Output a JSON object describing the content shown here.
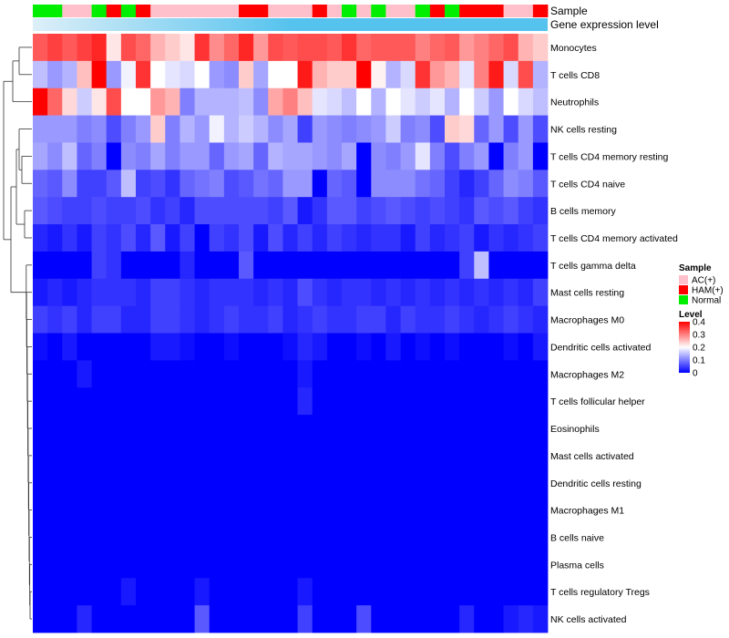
{
  "chart_data": {
    "type": "heatmap",
    "annotation_rows": [
      "Sample",
      "Gene expression level"
    ],
    "sample_groups": [
      "Normal",
      "Normal",
      "AC(+)",
      "AC(+)",
      "Normal",
      "HAM(+)",
      "Normal",
      "HAM(+)",
      "AC(+)",
      "AC(+)",
      "AC(+)",
      "AC(+)",
      "AC(+)",
      "AC(+)",
      "HAM(+)",
      "HAM(+)",
      "AC(+)",
      "AC(+)",
      "AC(+)",
      "HAM(+)",
      "AC(+)",
      "Normal",
      "AC(+)",
      "Normal",
      "AC(+)",
      "AC(+)",
      "Normal",
      "HAM(+)",
      "Normal",
      "HAM(+)",
      "HAM(+)",
      "HAM(+)",
      "AC(+)",
      "AC(+)",
      "HAM(+)"
    ],
    "rows": [
      "Monocytes",
      "T cells CD8",
      "Neutrophils",
      "NK cells resting",
      "T cells CD4 memory resting",
      "T cells CD4 naive",
      "B cells memory",
      "T cells CD4 memory activated",
      "T cells gamma delta",
      "Mast cells resting",
      "Macrophages M0",
      "Dendritic cells activated",
      "Macrophages M2",
      "T cells follicular helper",
      "Eosinophils",
      "Mast cells activated",
      "Dendritic cells resting",
      "Macrophages M1",
      "B cells naive",
      "Plasma cells",
      "T cells regulatory  Tregs",
      "NK cells activated"
    ],
    "values": [
      [
        0.33,
        0.35,
        0.33,
        0.35,
        0.37,
        0.22,
        0.34,
        0.32,
        0.26,
        0.24,
        0.22,
        0.36,
        0.29,
        0.32,
        0.37,
        0.28,
        0.34,
        0.33,
        0.34,
        0.34,
        0.33,
        0.36,
        0.32,
        0.33,
        0.33,
        0.33,
        0.3,
        0.32,
        0.33,
        0.28,
        0.3,
        0.32,
        0.34,
        0.26,
        0.24
      ],
      [
        0.15,
        0.12,
        0.14,
        0.25,
        0.4,
        0.12,
        0.19,
        0.36,
        0.2,
        0.18,
        0.17,
        0.2,
        0.12,
        0.11,
        0.24,
        0.13,
        0.2,
        0.2,
        0.38,
        0.26,
        0.24,
        0.24,
        0.4,
        0.21,
        0.14,
        0.17,
        0.36,
        0.28,
        0.26,
        0.18,
        0.3,
        0.38,
        0.17,
        0.34,
        0.14
      ],
      [
        0.4,
        0.32,
        0.23,
        0.16,
        0.22,
        0.34,
        0.2,
        0.2,
        0.28,
        0.26,
        0.1,
        0.14,
        0.14,
        0.14,
        0.15,
        0.11,
        0.27,
        0.3,
        0.25,
        0.18,
        0.17,
        0.15,
        0.2,
        0.14,
        0.2,
        0.18,
        0.16,
        0.18,
        0.14,
        0.2,
        0.16,
        0.12,
        0.2,
        0.17,
        0.15
      ],
      [
        0.12,
        0.12,
        0.12,
        0.1,
        0.11,
        0.06,
        0.1,
        0.12,
        0.24,
        0.1,
        0.14,
        0.12,
        0.19,
        0.14,
        0.16,
        0.14,
        0.11,
        0.13,
        0.05,
        0.12,
        0.11,
        0.1,
        0.11,
        0.12,
        0.16,
        0.1,
        0.11,
        0.06,
        0.24,
        0.23,
        0.08,
        0.12,
        0.06,
        0.12,
        0.06
      ],
      [
        0.13,
        0.11,
        0.15,
        0.08,
        0.1,
        0.0,
        0.11,
        0.1,
        0.13,
        0.1,
        0.12,
        0.12,
        0.08,
        0.12,
        0.13,
        0.08,
        0.14,
        0.13,
        0.13,
        0.12,
        0.11,
        0.13,
        0.0,
        0.11,
        0.1,
        0.12,
        0.18,
        0.1,
        0.06,
        0.1,
        0.12,
        0.0,
        0.1,
        0.12,
        0.0
      ],
      [
        0.08,
        0.07,
        0.11,
        0.05,
        0.05,
        0.07,
        0.15,
        0.05,
        0.06,
        0.04,
        0.08,
        0.09,
        0.1,
        0.06,
        0.07,
        0.09,
        0.08,
        0.12,
        0.12,
        0.0,
        0.08,
        0.07,
        0.0,
        0.11,
        0.11,
        0.11,
        0.09,
        0.08,
        0.05,
        0.03,
        0.05,
        0.08,
        0.11,
        0.1,
        0.07
      ],
      [
        0.07,
        0.06,
        0.05,
        0.05,
        0.06,
        0.05,
        0.05,
        0.06,
        0.04,
        0.05,
        0.03,
        0.06,
        0.06,
        0.06,
        0.06,
        0.06,
        0.05,
        0.07,
        0.02,
        0.04,
        0.07,
        0.07,
        0.05,
        0.06,
        0.07,
        0.06,
        0.05,
        0.06,
        0.05,
        0.04,
        0.07,
        0.06,
        0.07,
        0.05,
        0.04
      ],
      [
        0.03,
        0.02,
        0.04,
        0.02,
        0.05,
        0.04,
        0.06,
        0.03,
        0.07,
        0.02,
        0.05,
        0.0,
        0.05,
        0.04,
        0.06,
        0.02,
        0.06,
        0.03,
        0.05,
        0.03,
        0.05,
        0.04,
        0.03,
        0.04,
        0.04,
        0.02,
        0.05,
        0.03,
        0.04,
        0.05,
        0.02,
        0.04,
        0.03,
        0.04,
        0.05
      ],
      [
        0.0,
        0.0,
        0.0,
        0.0,
        0.05,
        0.04,
        0.0,
        0.0,
        0.0,
        0.0,
        0.03,
        0.0,
        0.0,
        0.0,
        0.07,
        0.0,
        0.0,
        0.0,
        0.0,
        0.0,
        0.0,
        0.0,
        0.0,
        0.0,
        0.0,
        0.0,
        0.0,
        0.0,
        0.0,
        0.05,
        0.15,
        0.0,
        0.0,
        0.0,
        0.0
      ],
      [
        0.02,
        0.03,
        0.02,
        0.03,
        0.04,
        0.04,
        0.04,
        0.03,
        0.05,
        0.05,
        0.04,
        0.03,
        0.04,
        0.04,
        0.04,
        0.03,
        0.04,
        0.03,
        0.06,
        0.04,
        0.03,
        0.04,
        0.04,
        0.03,
        0.04,
        0.03,
        0.04,
        0.03,
        0.04,
        0.03,
        0.04,
        0.03,
        0.04,
        0.03,
        0.05
      ],
      [
        0.05,
        0.04,
        0.05,
        0.03,
        0.05,
        0.05,
        0.03,
        0.03,
        0.05,
        0.05,
        0.04,
        0.03,
        0.04,
        0.05,
        0.04,
        0.04,
        0.05,
        0.03,
        0.04,
        0.05,
        0.04,
        0.04,
        0.05,
        0.05,
        0.03,
        0.05,
        0.04,
        0.04,
        0.05,
        0.04,
        0.03,
        0.04,
        0.05,
        0.04,
        0.03
      ],
      [
        0.01,
        0.0,
        0.02,
        0.0,
        0.0,
        0.0,
        0.0,
        0.0,
        0.02,
        0.02,
        0.01,
        0.0,
        0.0,
        0.01,
        0.0,
        0.0,
        0.0,
        0.01,
        0.03,
        0.02,
        0.0,
        0.0,
        0.01,
        0.0,
        0.02,
        0.0,
        0.01,
        0.0,
        0.01,
        0.0,
        0.0,
        0.0,
        0.01,
        0.0,
        0.02
      ],
      [
        0.0,
        0.0,
        0.0,
        0.02,
        0.0,
        0.0,
        0.0,
        0.0,
        0.0,
        0.0,
        0.0,
        0.0,
        0.0,
        0.0,
        0.0,
        0.0,
        0.0,
        0.0,
        0.02,
        0.0,
        0.0,
        0.0,
        0.0,
        0.0,
        0.0,
        0.0,
        0.0,
        0.0,
        0.0,
        0.0,
        0.0,
        0.0,
        0.0,
        0.0,
        0.0
      ],
      [
        0.0,
        0.0,
        0.0,
        0.0,
        0.0,
        0.0,
        0.0,
        0.0,
        0.0,
        0.0,
        0.0,
        0.0,
        0.0,
        0.0,
        0.0,
        0.0,
        0.0,
        0.0,
        0.03,
        0.0,
        0.0,
        0.0,
        0.0,
        0.0,
        0.0,
        0.0,
        0.0,
        0.0,
        0.0,
        0.0,
        0.0,
        0.0,
        0.0,
        0.0,
        0.0
      ],
      [
        0.0,
        0.0,
        0.0,
        0.0,
        0.0,
        0.0,
        0.0,
        0.0,
        0.0,
        0.0,
        0.0,
        0.0,
        0.0,
        0.0,
        0.0,
        0.0,
        0.0,
        0.0,
        0.0,
        0.0,
        0.0,
        0.0,
        0.0,
        0.0,
        0.0,
        0.0,
        0.0,
        0.0,
        0.0,
        0.0,
        0.0,
        0.0,
        0.0,
        0.0,
        0.0
      ],
      [
        0.0,
        0.0,
        0.0,
        0.0,
        0.0,
        0.0,
        0.0,
        0.0,
        0.0,
        0.0,
        0.0,
        0.0,
        0.0,
        0.0,
        0.0,
        0.0,
        0.0,
        0.0,
        0.0,
        0.0,
        0.0,
        0.0,
        0.0,
        0.0,
        0.0,
        0.0,
        0.0,
        0.0,
        0.0,
        0.0,
        0.0,
        0.0,
        0.0,
        0.0,
        0.0
      ],
      [
        0.0,
        0.0,
        0.0,
        0.0,
        0.0,
        0.0,
        0.0,
        0.0,
        0.0,
        0.0,
        0.0,
        0.0,
        0.0,
        0.0,
        0.0,
        0.0,
        0.0,
        0.0,
        0.0,
        0.0,
        0.0,
        0.0,
        0.0,
        0.0,
        0.0,
        0.0,
        0.0,
        0.0,
        0.0,
        0.0,
        0.0,
        0.0,
        0.0,
        0.0,
        0.0
      ],
      [
        0.0,
        0.0,
        0.0,
        0.0,
        0.0,
        0.0,
        0.0,
        0.0,
        0.0,
        0.0,
        0.0,
        0.0,
        0.0,
        0.0,
        0.0,
        0.0,
        0.0,
        0.0,
        0.0,
        0.0,
        0.0,
        0.0,
        0.0,
        0.0,
        0.0,
        0.0,
        0.0,
        0.0,
        0.0,
        0.0,
        0.0,
        0.0,
        0.0,
        0.0,
        0.0
      ],
      [
        0.0,
        0.0,
        0.0,
        0.0,
        0.0,
        0.0,
        0.0,
        0.0,
        0.0,
        0.0,
        0.0,
        0.0,
        0.0,
        0.0,
        0.0,
        0.0,
        0.0,
        0.0,
        0.0,
        0.0,
        0.0,
        0.0,
        0.0,
        0.0,
        0.0,
        0.0,
        0.0,
        0.0,
        0.0,
        0.0,
        0.0,
        0.0,
        0.0,
        0.0,
        0.0
      ],
      [
        0.0,
        0.0,
        0.0,
        0.0,
        0.0,
        0.0,
        0.0,
        0.0,
        0.0,
        0.0,
        0.0,
        0.0,
        0.0,
        0.0,
        0.0,
        0.0,
        0.0,
        0.0,
        0.0,
        0.0,
        0.0,
        0.0,
        0.0,
        0.0,
        0.0,
        0.0,
        0.0,
        0.0,
        0.0,
        0.0,
        0.0,
        0.0,
        0.0,
        0.0,
        0.0
      ],
      [
        0.0,
        0.0,
        0.0,
        0.0,
        0.0,
        0.0,
        0.02,
        0.0,
        0.0,
        0.0,
        0.0,
        0.02,
        0.0,
        0.0,
        0.0,
        0.0,
        0.0,
        0.0,
        0.02,
        0.0,
        0.0,
        0.0,
        0.0,
        0.0,
        0.0,
        0.0,
        0.0,
        0.0,
        0.0,
        0.0,
        0.0,
        0.0,
        0.0,
        0.0,
        0.0
      ],
      [
        0.0,
        0.0,
        0.0,
        0.03,
        0.0,
        0.0,
        0.0,
        0.0,
        0.0,
        0.0,
        0.0,
        0.07,
        0.0,
        0.0,
        0.0,
        0.0,
        0.0,
        0.0,
        0.05,
        0.0,
        0.0,
        0.0,
        0.06,
        0.0,
        0.0,
        0.0,
        0.0,
        0.0,
        0.0,
        0.03,
        0.0,
        0.0,
        0.02,
        0.03,
        0.02
      ]
    ],
    "color_scale": {
      "min": 0,
      "mid": 0.2,
      "max": 0.4,
      "low": "#0000FF",
      "mid_color": "#FFFFFF",
      "high": "#FF0000"
    },
    "legends": [
      {
        "title": "Sample",
        "items": [
          {
            "label": "AC(+)",
            "color": "#FFC0CB"
          },
          {
            "label": "HAM(+)",
            "color": "#FF0000"
          },
          {
            "label": "Normal",
            "color": "#00EE00"
          }
        ]
      },
      {
        "title": "Level",
        "ticks": [
          "0.4",
          "0.3",
          "0.2",
          "0.1",
          "0"
        ],
        "range": [
          0,
          0.4
        ]
      }
    ],
    "expression_level_color": "#56C3EE",
    "expression_level_start_color": "#DDEFF8"
  }
}
